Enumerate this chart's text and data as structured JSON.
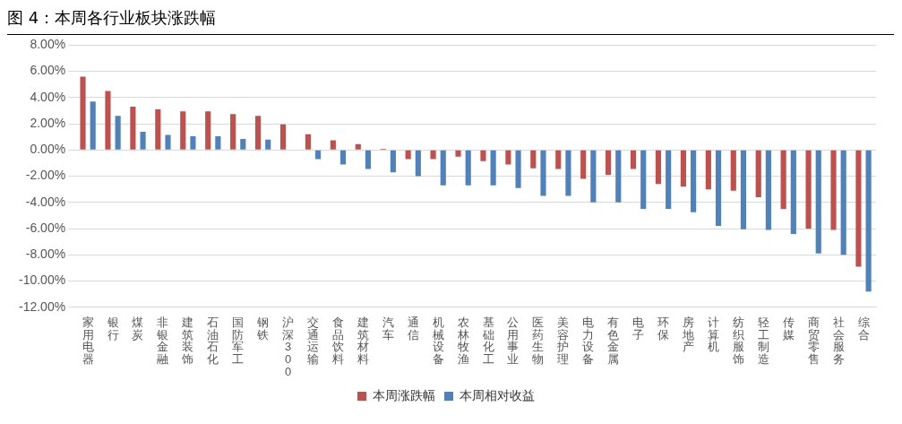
{
  "chart_data": {
    "type": "bar",
    "title": "图 4：本周各行业板块涨跌幅",
    "categories": [
      "家用电器",
      "银行",
      "煤炭",
      "非银金融",
      "建筑装饰",
      "石油石化",
      "国防军工",
      "钢铁",
      "沪深300",
      "交通运输",
      "食品饮料",
      "建筑材料",
      "汽车",
      "通信",
      "机械设备",
      "农林牧渔",
      "基础化工",
      "公用事业",
      "医药生物",
      "美容护理",
      "电力设备",
      "有色金属",
      "电子",
      "环保",
      "房地产",
      "计算机",
      "纺织服饰",
      "轻工制造",
      "传媒",
      "商贸零售",
      "社会服务",
      "综合"
    ],
    "series": [
      {
        "name": "本周涨跌幅",
        "color": "#c0504d",
        "values": [
          5.6,
          4.5,
          3.3,
          3.1,
          2.95,
          2.95,
          2.75,
          2.6,
          1.95,
          1.2,
          0.75,
          0.45,
          0.1,
          -0.7,
          -0.7,
          -0.5,
          -0.85,
          -1.1,
          -1.4,
          -1.45,
          -2.2,
          -1.9,
          -1.45,
          -2.6,
          -2.8,
          -3.0,
          -3.1,
          -3.6,
          -4.5,
          -6.0,
          -6.1,
          -8.9
        ]
      },
      {
        "name": "本周相对收益",
        "color": "#4f81bd",
        "values": [
          3.7,
          2.6,
          1.4,
          1.15,
          1.05,
          1.05,
          0.85,
          0.8,
          null,
          -0.7,
          -1.1,
          -1.45,
          -1.7,
          -2.0,
          -2.7,
          -2.7,
          -2.7,
          -2.9,
          -3.5,
          -3.5,
          -4.0,
          -4.0,
          -4.5,
          -4.5,
          -4.75,
          -5.8,
          -6.05,
          -6.1,
          -6.4,
          -7.9,
          -8.0,
          -10.8
        ]
      }
    ],
    "ylim": [
      -12,
      8
    ],
    "yticks": [
      {
        "value": -12,
        "label": "-12.00%"
      },
      {
        "value": -10,
        "label": "-10.00%"
      },
      {
        "value": -8,
        "label": "-8.00%"
      },
      {
        "value": -6,
        "label": "-6.00%"
      },
      {
        "value": -4,
        "label": "-4.00%"
      },
      {
        "value": -2,
        "label": "-2.00%"
      },
      {
        "value": 0,
        "label": "0.00%"
      },
      {
        "value": 2,
        "label": "2.00%"
      },
      {
        "value": 4,
        "label": "4.00%"
      },
      {
        "value": 6,
        "label": "6.00%"
      },
      {
        "value": 8,
        "label": "8.00%"
      }
    ],
    "grid": "y",
    "legend": "bottom"
  }
}
